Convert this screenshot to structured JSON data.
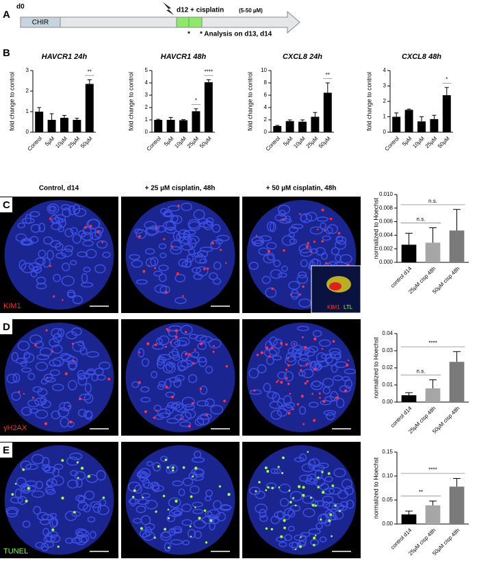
{
  "panel_a": {
    "letter": "A",
    "start": "d0",
    "chir": "CHIR",
    "event": "d12 + cisplatin",
    "dose": "(5-50 µM)",
    "star": "*",
    "analysis": "* Analysis on d13, d14"
  },
  "panel_letters": [
    "B",
    "C",
    "D",
    "E"
  ],
  "image_columns": [
    "Control, d14",
    "+ 25 µM cisplatin, 48h",
    "+ 50 µM cisplatin, 48h"
  ],
  "stains": [
    "KIM1",
    "γH2AX",
    "TUNEL"
  ],
  "inset": [
    "KIM1",
    "LTL"
  ],
  "chart_data": [
    {
      "type": "bar",
      "title": "HAVCR1 24h",
      "y_label": "fold change to control",
      "categories": [
        "Control",
        "5µM",
        "10µM",
        "25µM",
        "50µM"
      ],
      "values": [
        1.0,
        0.6,
        0.7,
        0.6,
        2.35
      ],
      "errors": [
        0.2,
        0.3,
        0.12,
        0.08,
        0.2
      ],
      "color": "#000000",
      "ylim": [
        0,
        3
      ],
      "yticks": [
        0,
        1,
        2,
        3
      ],
      "annotations": [
        {
          "text": "**",
          "from": 4,
          "to": 4
        }
      ]
    },
    {
      "type": "bar",
      "title": "HAVCR1 48h",
      "y_label": "fold change to control",
      "categories": [
        "Control",
        "5µM",
        "10µM",
        "25µM",
        "50µM"
      ],
      "values": [
        1.0,
        1.0,
        0.97,
        1.7,
        4.05
      ],
      "errors": [
        0.05,
        0.2,
        0.05,
        0.2,
        0.2
      ],
      "color": "#000000",
      "ylim": [
        0,
        5
      ],
      "yticks": [
        0,
        1,
        2,
        3,
        4,
        5
      ],
      "annotations": [
        {
          "text": "*",
          "from": 3,
          "to": 3
        },
        {
          "text": "****",
          "from": 4,
          "to": 4
        }
      ]
    },
    {
      "type": "bar",
      "title": "CXCL8 24h",
      "y_label": "fold change to control",
      "categories": [
        "Control",
        "5µM",
        "10µM",
        "25µM",
        "50µM"
      ],
      "values": [
        1.0,
        1.8,
        1.7,
        2.5,
        6.4
      ],
      "errors": [
        0.1,
        0.2,
        0.3,
        0.7,
        1.6
      ],
      "color": "#000000",
      "ylim": [
        0,
        10
      ],
      "yticks": [
        0,
        2,
        4,
        6,
        8,
        10
      ],
      "annotations": [
        {
          "text": "**",
          "from": 4,
          "to": 4
        }
      ]
    },
    {
      "type": "bar",
      "title": "CXCL8 48h",
      "y_label": "fold change to control",
      "categories": [
        "Control",
        "5µM",
        "10µM",
        "25µM",
        "50µM"
      ],
      "values": [
        1.0,
        1.45,
        0.7,
        0.85,
        2.4
      ],
      "errors": [
        0.25,
        0.05,
        0.3,
        0.25,
        0.5
      ],
      "color": "#000000",
      "ylim": [
        0,
        4
      ],
      "yticks": [
        0,
        1,
        2,
        3,
        4
      ],
      "annotations": [
        {
          "text": "*",
          "from": 4,
          "to": 4
        }
      ]
    },
    {
      "type": "bar",
      "y_label": "normalized to Hoechst",
      "categories": [
        "control d14",
        "25µM cisp 48h",
        "50µM cisp 48h"
      ],
      "values": [
        0.0026,
        0.0029,
        0.0047
      ],
      "errors": [
        0.0017,
        0.0022,
        0.0031
      ],
      "colors": [
        "#000000",
        "#a6a6a6",
        "#7a7a7a"
      ],
      "ylim": [
        0,
        0.01
      ],
      "yticks": [
        {
          "value": 0,
          "label": "0.000"
        },
        {
          "value": 0.002,
          "label": "0.002"
        },
        {
          "value": 0.004,
          "label": "0.004"
        },
        {
          "value": 0.006,
          "label": "0.006"
        },
        {
          "value": 0.008,
          "label": "0.008"
        },
        {
          "value": 0.01,
          "label": "0.010"
        }
      ],
      "annotations": [
        {
          "text": "n.s.",
          "from": 0,
          "to": 1
        },
        {
          "text": "n.s.",
          "from": 0,
          "to": 2
        }
      ]
    },
    {
      "type": "bar",
      "y_label": "normalized to Hoechst",
      "categories": [
        "control d14",
        "25µM cisp 48h",
        "50µM cisp 48h"
      ],
      "values": [
        0.004,
        0.008,
        0.0235
      ],
      "errors": [
        0.0015,
        0.005,
        0.006
      ],
      "colors": [
        "#000000",
        "#a6a6a6",
        "#7a7a7a"
      ],
      "ylim": [
        0,
        0.04
      ],
      "yticks": [
        {
          "value": 0,
          "label": "0.00"
        },
        {
          "value": 0.01,
          "label": "0.01"
        },
        {
          "value": 0.02,
          "label": "0.02"
        },
        {
          "value": 0.03,
          "label": "0.03"
        },
        {
          "value": 0.04,
          "label": "0.04"
        }
      ],
      "annotations": [
        {
          "text": "n.s.",
          "from": 0,
          "to": 1
        },
        {
          "text": "****",
          "from": 0,
          "to": 2
        }
      ]
    },
    {
      "type": "bar",
      "y_label": "normalized to Hoechst",
      "categories": [
        "control d14",
        "25µM cisp 48h",
        "50µM cisp 48h"
      ],
      "values": [
        0.02,
        0.039,
        0.078
      ],
      "errors": [
        0.007,
        0.009,
        0.017
      ],
      "colors": [
        "#000000",
        "#a6a6a6",
        "#7a7a7a"
      ],
      "ylim": [
        0,
        0.15
      ],
      "yticks": [
        {
          "value": 0,
          "label": "0.00"
        },
        {
          "value": 0.05,
          "label": "0.05"
        },
        {
          "value": 0.1,
          "label": "0.10"
        },
        {
          "value": 0.15,
          "label": "0.15"
        }
      ],
      "annotations": [
        {
          "text": "**",
          "from": 0,
          "to": 1
        },
        {
          "text": "****",
          "from": 0,
          "to": 2
        }
      ]
    }
  ]
}
